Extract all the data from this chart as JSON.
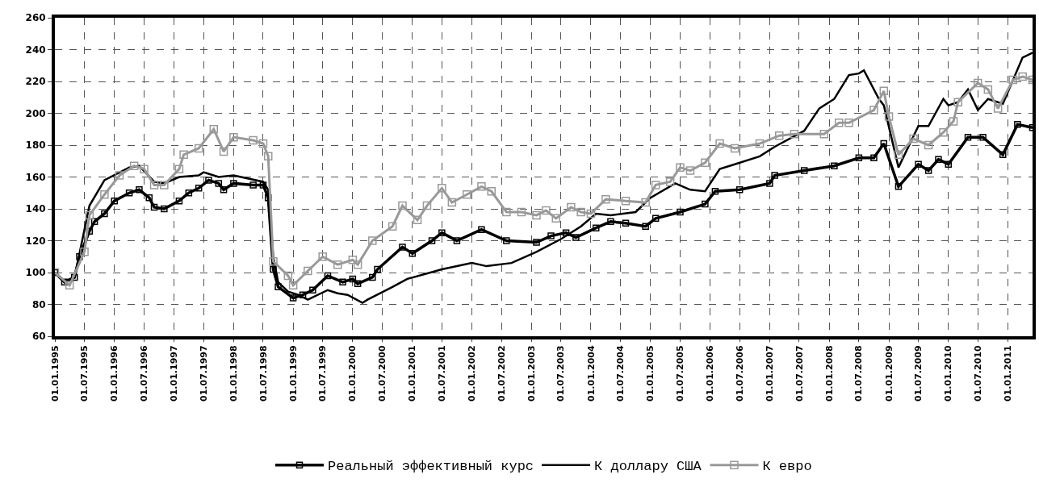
{
  "chart_data": {
    "type": "line",
    "series": [
      {
        "name": "Реальный эффективный курс",
        "color": "#000000",
        "marker": "square",
        "x": [
          "1995-01",
          "1995-03",
          "1995-05",
          "1995-06",
          "1995-08",
          "1995-09",
          "1995-11",
          "1996-01",
          "1996-04",
          "1996-06",
          "1996-08",
          "1996-09",
          "1996-11",
          "1997-02",
          "1997-04",
          "1997-06",
          "1997-08",
          "1997-10",
          "1997-11",
          "1998-01",
          "1998-05",
          "1998-07",
          "1998-08",
          "1998-09",
          "1998-10",
          "1999-01",
          "1999-03",
          "1999-05",
          "1999-08",
          "1999-11",
          "2000-01",
          "2000-02",
          "2000-05",
          "2000-06",
          "2000-11",
          "2001-01",
          "2001-05",
          "2001-07",
          "2001-10",
          "2002-03",
          "2002-08",
          "2003-02",
          "2003-05",
          "2003-08",
          "2003-10",
          "2004-02",
          "2004-05",
          "2004-08",
          "2004-12",
          "2005-02",
          "2005-07",
          "2005-12",
          "2006-02",
          "2006-07",
          "2007-01",
          "2007-02",
          "2007-08",
          "2008-02",
          "2008-07",
          "2008-10",
          "2008-12",
          "2009-03",
          "2009-07",
          "2009-09",
          "2009-11",
          "2010-01",
          "2010-05",
          "2010-08",
          "2010-12",
          "2011-03",
          "2011-06"
        ],
        "values": [
          100,
          94,
          97,
          110,
          126,
          132,
          137,
          145,
          150,
          152,
          147,
          141,
          140,
          145,
          150,
          153,
          158,
          156,
          152,
          156,
          155,
          155,
          147,
          102,
          91,
          84,
          86,
          89,
          98,
          94,
          96,
          93,
          97,
          102,
          116,
          112,
          120,
          125,
          120,
          127,
          120,
          119,
          123,
          125,
          122,
          128,
          132,
          131,
          129,
          134,
          138,
          143,
          151,
          152,
          156,
          161,
          164,
          167,
          172,
          172,
          181,
          154,
          168,
          164,
          171,
          168,
          185,
          185,
          174,
          193,
          191
        ]
      },
      {
        "name": "К доллару США",
        "color": "#000000",
        "marker": "none",
        "x": [
          "1995-01",
          "1995-03",
          "1995-05",
          "1995-06",
          "1995-08",
          "1995-11",
          "1996-04",
          "1996-06",
          "1996-09",
          "1996-11",
          "1997-02",
          "1997-06",
          "1997-07",
          "1997-10",
          "1998-01",
          "1998-07",
          "1998-08",
          "1998-09",
          "1998-10",
          "1998-12",
          "1999-02",
          "1999-04",
          "1999-08",
          "1999-10",
          "1999-12",
          "2000-03",
          "2000-04",
          "2000-09",
          "2000-12",
          "2001-07",
          "2002-01",
          "2002-04",
          "2002-09",
          "2003-02",
          "2003-07",
          "2003-11",
          "2004-02",
          "2004-05",
          "2004-10",
          "2005-01",
          "2005-06",
          "2005-09",
          "2005-12",
          "2006-03",
          "2006-06",
          "2006-11",
          "2007-02",
          "2007-08",
          "2007-11",
          "2008-02",
          "2008-05",
          "2008-07",
          "2008-08",
          "2008-11",
          "2008-12",
          "2009-03",
          "2009-07",
          "2009-09",
          "2009-12",
          "2010-01",
          "2010-03",
          "2010-05",
          "2010-07",
          "2010-09",
          "2010-12",
          "2011-04",
          "2011-06"
        ],
        "values": [
          100,
          94,
          97,
          112,
          142,
          158,
          166,
          167,
          157,
          156,
          160,
          161,
          163,
          160,
          161,
          157,
          152,
          110,
          94,
          88,
          86,
          83,
          89,
          87,
          86,
          81,
          83,
          91,
          96,
          102,
          106,
          104,
          106,
          113,
          121,
          129,
          137,
          136,
          138,
          147,
          156,
          152,
          151,
          165,
          168,
          173,
          179,
          189,
          203,
          209,
          224,
          225,
          227,
          209,
          205,
          166,
          192,
          192,
          209,
          205,
          207,
          215,
          202,
          209,
          206,
          235,
          238
        ]
      },
      {
        "name": "К евро",
        "color": "#999999",
        "marker": "square",
        "x": [
          "1995-01",
          "1995-04",
          "1995-07",
          "1995-08",
          "1995-11",
          "1996-02",
          "1996-05",
          "1996-07",
          "1996-09",
          "1996-11",
          "1997-02",
          "1997-03",
          "1997-06",
          "1997-09",
          "1997-11",
          "1998-01",
          "1998-05",
          "1998-07",
          "1998-08",
          "1998-09",
          "1998-12",
          "1999-01",
          "1999-04",
          "1999-07",
          "1999-10",
          "2000-01",
          "2000-02",
          "2000-05",
          "2000-09",
          "2000-11",
          "2001-02",
          "2001-04",
          "2001-07",
          "2001-09",
          "2001-12",
          "2002-03",
          "2002-05",
          "2002-08",
          "2002-11",
          "2003-02",
          "2003-04",
          "2003-06",
          "2003-09",
          "2003-11",
          "2004-01",
          "2004-04",
          "2004-08",
          "2004-12",
          "2005-02",
          "2005-05",
          "2005-07",
          "2005-09",
          "2005-12",
          "2006-03",
          "2006-06",
          "2006-11",
          "2007-03",
          "2007-06",
          "2007-12",
          "2008-03",
          "2008-05",
          "2008-10",
          "2008-12",
          "2009-01",
          "2009-03",
          "2009-06",
          "2009-09",
          "2009-12",
          "2010-02",
          "2010-03",
          "2010-07",
          "2010-09",
          "2010-11",
          "2011-02",
          "2011-04",
          "2011-06"
        ],
        "values": [
          100,
          92,
          113,
          136,
          149,
          161,
          167,
          165,
          155,
          155,
          165,
          174,
          178,
          190,
          176,
          185,
          183,
          181,
          173,
          107,
          98,
          92,
          101,
          110,
          105,
          108,
          105,
          120,
          129,
          142,
          133,
          142,
          153,
          144,
          149,
          154,
          151,
          138,
          138,
          136,
          139,
          134,
          141,
          138,
          137,
          146,
          145,
          144,
          155,
          157,
          166,
          164,
          169,
          181,
          178,
          181,
          186,
          187,
          187,
          194,
          194,
          202,
          214,
          198,
          174,
          184,
          180,
          188,
          195,
          207,
          219,
          215,
          203,
          221,
          223,
          221
        ]
      }
    ],
    "xlim": [
      "1995-01",
      "2011-06"
    ],
    "xticks": [
      {
        "value": "1995-01",
        "label": "01.01.1995"
      },
      {
        "value": "1995-07",
        "label": "01.07.1995"
      },
      {
        "value": "1996-01",
        "label": "01.01.1996"
      },
      {
        "value": "1996-07",
        "label": "01.07.1996"
      },
      {
        "value": "1997-01",
        "label": "01.01.1997"
      },
      {
        "value": "1997-07",
        "label": "01.07.1997"
      },
      {
        "value": "1998-01",
        "label": "01.01.1998"
      },
      {
        "value": "1998-07",
        "label": "01.07.1998"
      },
      {
        "value": "1999-01",
        "label": "01.01.1999"
      },
      {
        "value": "1999-07",
        "label": "01.07.1999"
      },
      {
        "value": "2000-01",
        "label": "01.01.2000"
      },
      {
        "value": "2000-07",
        "label": "01.07.2000"
      },
      {
        "value": "2001-01",
        "label": "01.01.2001"
      },
      {
        "value": "2001-07",
        "label": "01.07.2001"
      },
      {
        "value": "2002-01",
        "label": "01.01.2002"
      },
      {
        "value": "2002-07",
        "label": "01.07.2002"
      },
      {
        "value": "2003-01",
        "label": "01.01.2003"
      },
      {
        "value": "2003-07",
        "label": "01.07.2003"
      },
      {
        "value": "2004-01",
        "label": "01.01.2004"
      },
      {
        "value": "2004-07",
        "label": "01.07.2004"
      },
      {
        "value": "2005-01",
        "label": "01.01.2005"
      },
      {
        "value": "2005-07",
        "label": "01.07.2005"
      },
      {
        "value": "2006-01",
        "label": "01.01.2006"
      },
      {
        "value": "2006-07",
        "label": "01.07.2006"
      },
      {
        "value": "2007-01",
        "label": "01.01.2007"
      },
      {
        "value": "2007-07",
        "label": "01.07.2007"
      },
      {
        "value": "2008-01",
        "label": "01.01.2008"
      },
      {
        "value": "2008-07",
        "label": "01.07.2008"
      },
      {
        "value": "2009-01",
        "label": "01.01.2009"
      },
      {
        "value": "2009-07",
        "label": "01.07.2009"
      },
      {
        "value": "2010-01",
        "label": "01.01.2010"
      },
      {
        "value": "2010-07",
        "label": "01.07.2010"
      },
      {
        "value": "2011-01",
        "label": "01.01.2011"
      }
    ],
    "ylim": [
      60,
      260
    ],
    "yticks": [
      60,
      80,
      100,
      120,
      140,
      160,
      180,
      200,
      220,
      240,
      260
    ],
    "grid": true,
    "line_style": "solid",
    "legend": "bottom"
  }
}
